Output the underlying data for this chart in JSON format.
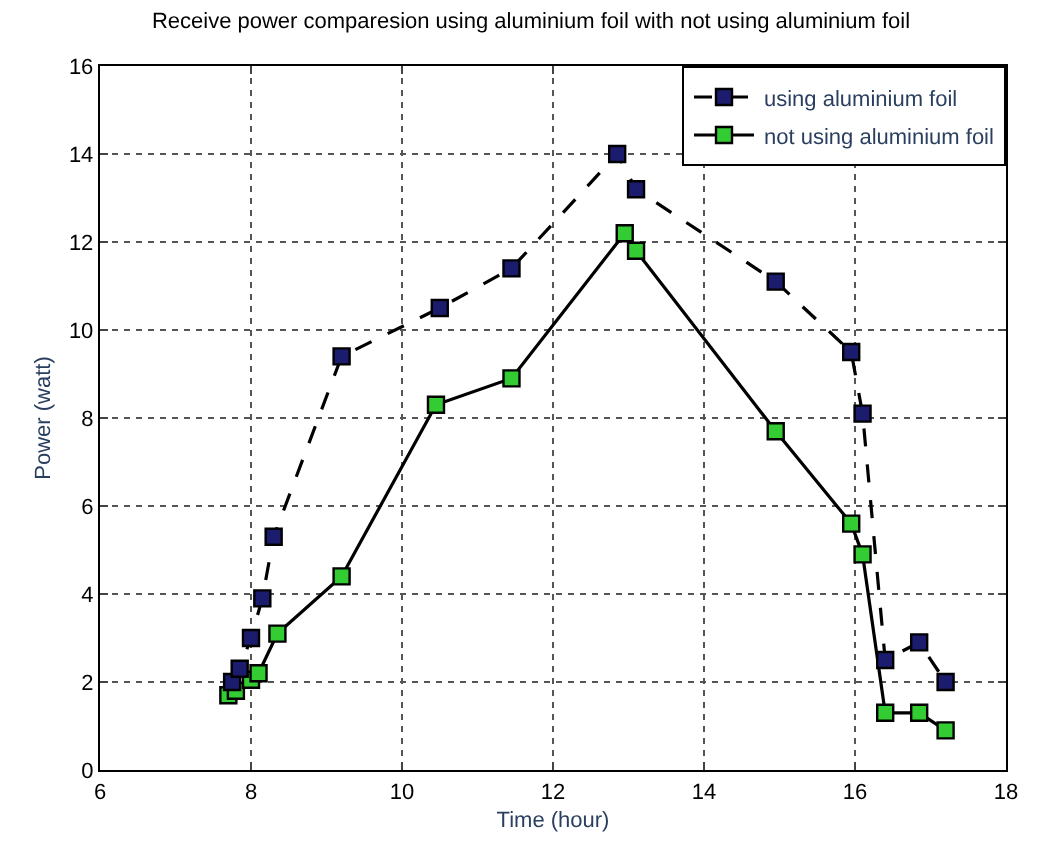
{
  "chart_data": {
    "type": "line",
    "title": "Receive power comparesion using aluminium foil with not using aluminium foil",
    "xlabel": "Time (hour)",
    "ylabel": "Power (watt)",
    "xlim": [
      6,
      18
    ],
    "xticks": [
      6,
      8,
      10,
      12,
      14,
      16,
      18
    ],
    "ylim": [
      0,
      16
    ],
    "yticks": [
      0,
      2,
      4,
      6,
      8,
      10,
      12,
      14,
      16
    ],
    "grid": true,
    "legend": "top right",
    "marker": "square",
    "series": [
      {
        "name": "using aluminium foil",
        "color": "#1c1c6e",
        "line_style": "dashed",
        "x": [
          7.75,
          7.85,
          8.0,
          8.15,
          8.3,
          9.2,
          10.5,
          11.45,
          12.85,
          13.1,
          14.95,
          15.95,
          16.1,
          16.4,
          16.85,
          17.2
        ],
        "values": [
          2.0,
          2.3,
          3.0,
          3.9,
          5.3,
          9.4,
          10.5,
          11.4,
          14.0,
          13.2,
          11.1,
          9.5,
          8.1,
          2.5,
          2.9,
          2.0
        ]
      },
      {
        "name": "not using aluminium foil",
        "color": "#33cc33",
        "line_style": "solid",
        "x": [
          7.7,
          7.8,
          8.0,
          8.1,
          8.35,
          9.2,
          10.45,
          11.45,
          12.95,
          13.1,
          14.95,
          15.95,
          16.1,
          16.4,
          16.85,
          17.2
        ],
        "values": [
          1.7,
          1.8,
          2.05,
          2.2,
          3.1,
          4.4,
          8.3,
          8.9,
          12.2,
          11.8,
          7.7,
          5.6,
          4.9,
          1.3,
          1.3,
          0.9
        ]
      }
    ]
  }
}
